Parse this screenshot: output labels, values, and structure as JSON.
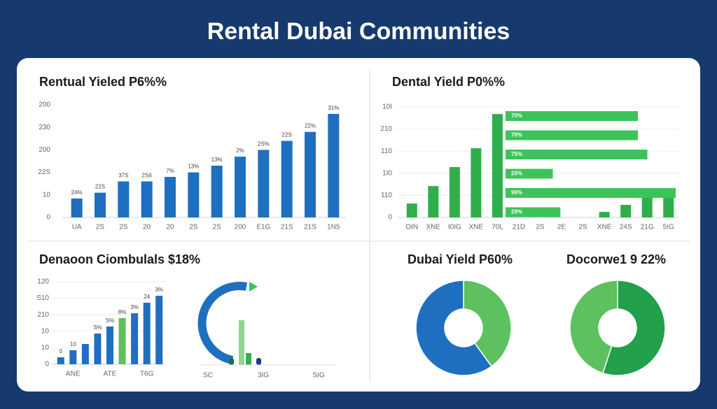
{
  "title": "Rental Dubai Communities",
  "chart_data": [
    {
      "type": "bar",
      "title": "Rentual Yieled P6%%",
      "color": "#1f6fc0",
      "categories": [
        "UA",
        "2S",
        "2S",
        "20",
        "20",
        "2S",
        "2S",
        "200",
        "E1G",
        "21S",
        "21S",
        "1N5"
      ],
      "values": [
        8.4,
        11,
        16,
        16,
        18,
        20,
        23,
        27,
        30,
        34,
        38,
        46
      ],
      "annotations": [
        "24%",
        "22S",
        "37S",
        "2S6",
        "7%",
        "13%",
        "13%",
        "2%",
        "2S%",
        "22S",
        "22%",
        "31%"
      ],
      "ylim": [
        0,
        50
      ],
      "yticks": [
        0,
        10,
        {
          "value": 20,
          "label": "22S"
        },
        {
          "value": 30,
          "label": "200"
        },
        {
          "value": 40,
          "label": "230"
        },
        {
          "value": 50,
          "label": "200"
        }
      ],
      "grid": false
    },
    {
      "type": "bar",
      "title": "Dental Yield P0%%",
      "color": "#2fae4a",
      "categories": [
        "OIN",
        "XNE",
        "I0IG",
        "XNE",
        "70L",
        "21D",
        "2S",
        "2E",
        "2S",
        "XNE",
        "24S",
        "21G",
        "5IG"
      ],
      "values": [
        6.3,
        14.2,
        22.8,
        31.3,
        46.8,
        null,
        null,
        null,
        null,
        2.5,
        5.7,
        9.5,
        10.8
      ],
      "ylim": [
        0,
        50
      ],
      "yticks": [
        0,
        {
          "value": 10,
          "label": "110"
        },
        {
          "value": 20,
          "label": "1I0"
        },
        {
          "value": 30,
          "label": "110"
        },
        {
          "value": 40,
          "label": "210"
        },
        {
          "value": 50,
          "label": "10I"
        }
      ],
      "grid": true,
      "bars_h": {
        "color": "#3cc35a",
        "xlim": [
          0,
          100
        ],
        "values": [
          70,
          70,
          75,
          25,
          90,
          29
        ],
        "value_labels": [
          "70%",
          "70%",
          "75%",
          "25%",
          "90%",
          "29%"
        ]
      }
    },
    {
      "type": "bar",
      "title": "Denaoon Ciombulals $18%",
      "colors": [
        "#1f6fc0",
        "#1f6fc0",
        "#1f6fc0",
        "#1f6fc0",
        "#1f6fc0",
        "#5cc15e",
        "#1f6fc0",
        "#1f6fc0",
        "#1f6fc0"
      ],
      "categories": [
        null,
        "ANE",
        null,
        null,
        "ATE",
        null,
        null,
        "T6G",
        null
      ],
      "values": [
        4.2,
        8.5,
        12.3,
        18.6,
        22.9,
        28,
        30.9,
        37.3,
        41.5
      ],
      "annotations": [
        "0",
        "10",
        null,
        "S%",
        "S%",
        "8%",
        "3%",
        "24",
        "3%"
      ],
      "ylim": [
        0,
        50
      ],
      "yticks": [
        0,
        10,
        {
          "value": 20,
          "label": "10"
        },
        {
          "value": 30,
          "label": "210"
        },
        {
          "value": 40,
          "label": "S10"
        },
        {
          "value": 50,
          "label": "120"
        }
      ],
      "grid": true
    },
    {
      "type": "pie",
      "title": "Dubai Yield P60%",
      "values": [
        40,
        60
      ],
      "colors": [
        "#5cc15e",
        "#1f6fc0"
      ]
    },
    {
      "type": "pie",
      "title": "Docorwe1 9 22%",
      "values": [
        55,
        45
      ],
      "colors": [
        "#22a04a",
        "#5cc15e"
      ]
    }
  ],
  "gauge": {
    "labels": [
      "SC",
      "3IG",
      "SIG"
    ]
  }
}
